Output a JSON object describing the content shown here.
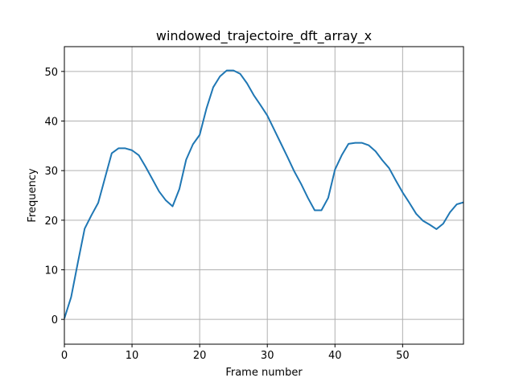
{
  "chart_data": {
    "type": "line",
    "title": "windowed_trajectoire_dft_array_x",
    "xlabel": "Frame number",
    "ylabel": "Frequency",
    "xlim": [
      0,
      59
    ],
    "ylim": [
      -5,
      55
    ],
    "x_ticks": [
      0,
      10,
      20,
      30,
      40,
      50
    ],
    "y_ticks": [
      0,
      10,
      20,
      30,
      40,
      50
    ],
    "grid": true,
    "series": [
      {
        "color": "#1f77b4",
        "x": [
          0,
          1,
          2,
          3,
          4,
          5,
          6,
          7,
          8,
          9,
          10,
          11,
          12,
          13,
          14,
          15,
          16,
          17,
          18,
          19,
          20,
          21,
          22,
          23,
          24,
          25,
          26,
          27,
          28,
          29,
          30,
          31,
          32,
          33,
          34,
          35,
          36,
          37,
          38,
          39,
          40,
          41,
          42,
          43,
          44,
          45,
          46,
          47,
          48,
          49,
          50,
          51,
          52,
          53,
          54,
          55,
          56,
          57,
          58,
          59
        ],
        "values": [
          0.2,
          4.5,
          11.5,
          18.3,
          21.0,
          23.5,
          28.5,
          33.5,
          34.5,
          34.5,
          34.1,
          33.1,
          30.8,
          28.3,
          25.8,
          24.0,
          22.8,
          26.3,
          32.2,
          35.3,
          37.2,
          42.5,
          46.8,
          49.0,
          50.2,
          50.2,
          49.5,
          47.6,
          45.2,
          43.2,
          41.1,
          38.3,
          35.5,
          32.7,
          29.8,
          27.3,
          24.5,
          22.0,
          22.0,
          24.5,
          30.2,
          33.1,
          35.4,
          35.6,
          35.6,
          35.1,
          33.9,
          32.1,
          30.5,
          28.0,
          25.6,
          23.5,
          21.3,
          19.9,
          19.1,
          18.2,
          19.3,
          21.6,
          23.2,
          23.6
        ]
      }
    ]
  }
}
